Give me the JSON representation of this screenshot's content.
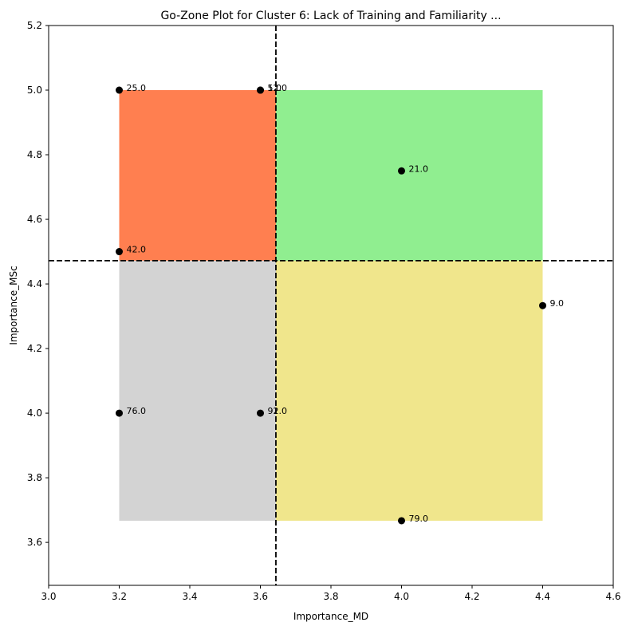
{
  "chart_data": {
    "type": "scatter",
    "title": "Go-Zone Plot for Cluster 6: Lack of Training and Familiarity ...",
    "xlabel": "Importance_MD",
    "ylabel": "Importance_MSc",
    "xlim": [
      3.0,
      4.6
    ],
    "ylim": [
      3.467,
      5.2
    ],
    "xticks": [
      3.0,
      3.2,
      3.4,
      3.6,
      3.8,
      4.0,
      4.2,
      4.4,
      4.6
    ],
    "yticks": [
      3.6,
      3.8,
      4.0,
      4.2,
      4.4,
      4.6,
      4.8,
      5.0,
      5.2
    ],
    "xtick_labels": [
      "3.0",
      "3.2",
      "3.4",
      "3.6",
      "3.8",
      "4.0",
      "4.2",
      "4.4",
      "4.6"
    ],
    "ytick_labels": [
      "3.6",
      "3.8",
      "4.0",
      "4.2",
      "4.4",
      "4.6",
      "4.8",
      "5.0",
      "5.2"
    ],
    "mean_x": 3.644,
    "mean_y": 4.472,
    "data_range": {
      "x": [
        3.2,
        4.4
      ],
      "y": [
        3.667,
        5.0
      ]
    },
    "quadrant_colors": {
      "top_left": "#ff7f50",
      "top_right": "#90ee90",
      "bottom_left": "#d3d3d3",
      "bottom_right": "#f0e68c"
    },
    "mean_line_color": "#000000",
    "point_color": "#000000",
    "points": [
      {
        "label": "25.0",
        "x": 3.2,
        "y": 5.0
      },
      {
        "label": "52.0",
        "x": 3.6,
        "y": 5.0
      },
      {
        "label": "1.0",
        "x": 3.6,
        "y": 5.0
      },
      {
        "label": "21.0",
        "x": 4.0,
        "y": 4.75
      },
      {
        "label": "42.0",
        "x": 3.2,
        "y": 4.5
      },
      {
        "label": "9.0",
        "x": 4.4,
        "y": 4.333
      },
      {
        "label": "76.0",
        "x": 3.2,
        "y": 4.0
      },
      {
        "label": "92.0",
        "x": 3.6,
        "y": 4.0
      },
      {
        "label": "79.0",
        "x": 4.0,
        "y": 3.667
      }
    ]
  }
}
